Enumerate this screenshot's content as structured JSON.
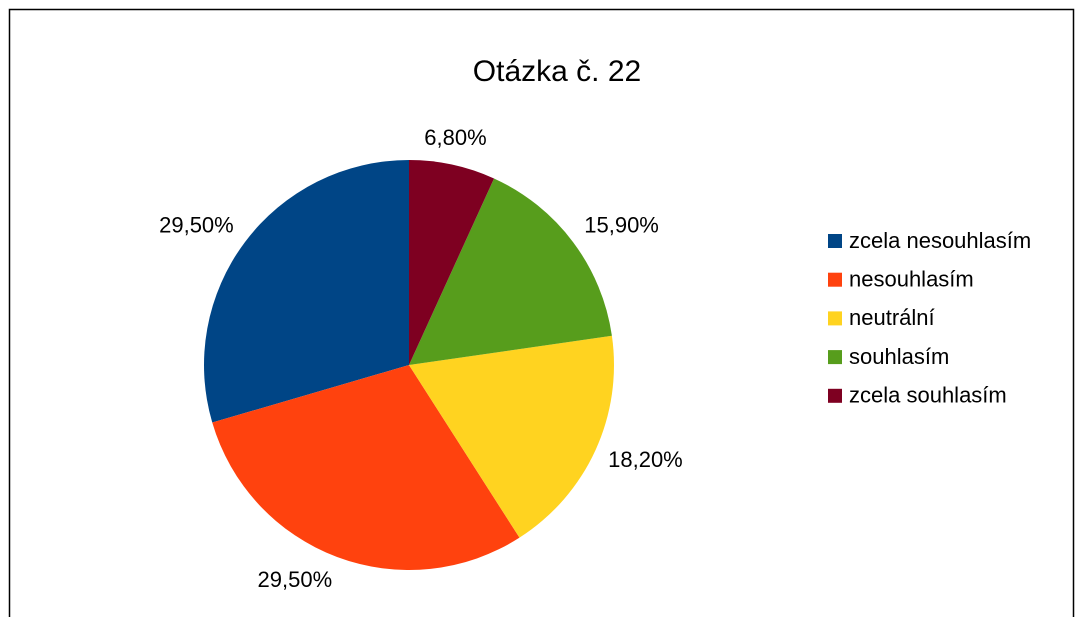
{
  "chart_data": {
    "type": "pie",
    "title": "Otázka č. 22",
    "categories": [
      "zcela nesouhlasím",
      "nesouhlasím",
      "neutrální",
      "souhlasím",
      "zcela souhlasím"
    ],
    "values": [
      29.5,
      29.5,
      18.2,
      15.9,
      6.8
    ],
    "value_labels": [
      "29,50%",
      "29,50%",
      "18,20%",
      "15,90%",
      "6,80%"
    ],
    "colors": [
      "#004586",
      "#ff420e",
      "#ffd320",
      "#579d1c",
      "#7e0021"
    ],
    "legend": "right"
  }
}
